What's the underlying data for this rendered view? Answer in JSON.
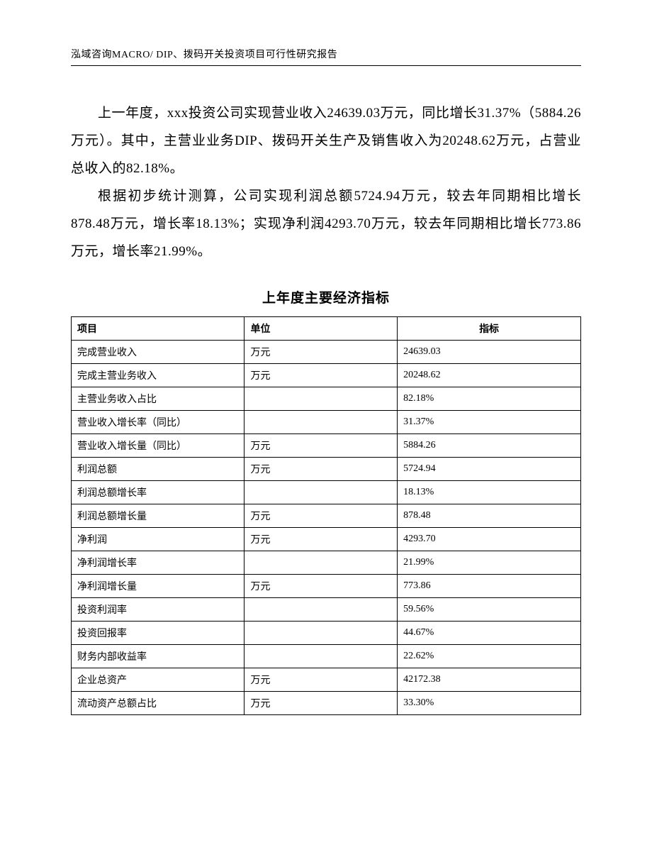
{
  "header": {
    "text": "泓域咨询MACRO/   DIP、拨码开关投资项目可行性研究报告"
  },
  "body_paragraphs": [
    "上一年度，xxx投资公司实现营业收入24639.03万元，同比增长31.37%（5884.26万元）。其中，主营业业务DIP、拨码开关生产及销售收入为20248.62万元，占营业总收入的82.18%。",
    "根据初步统计测算，公司实现利润总额5724.94万元，较去年同期相比增长878.48万元，增长率18.13%；实现净利润4293.70万元，较去年同期相比增长773.86万元，增长率21.99%。"
  ],
  "table": {
    "title": "上年度主要经济指标",
    "type": "table",
    "border_color": "#000000",
    "background_color": "#ffffff",
    "header_font_weight": "bold",
    "font_size_pt": 10.5,
    "column_widths_pct": [
      34,
      30,
      36
    ],
    "columns": [
      "项目",
      "单位",
      "指标"
    ],
    "header_align": [
      "left",
      "left",
      "center"
    ],
    "rows": [
      [
        "完成营业收入",
        "万元",
        "24639.03"
      ],
      [
        "完成主营业务收入",
        "万元",
        "20248.62"
      ],
      [
        "主营业务收入占比",
        "",
        "82.18%"
      ],
      [
        "营业收入增长率（同比）",
        "",
        "31.37%"
      ],
      [
        "营业收入增长量（同比）",
        "万元",
        "5884.26"
      ],
      [
        "利润总额",
        "万元",
        "5724.94"
      ],
      [
        "利润总额增长率",
        "",
        "18.13%"
      ],
      [
        "利润总额增长量",
        "万元",
        "878.48"
      ],
      [
        "净利润",
        "万元",
        "4293.70"
      ],
      [
        "净利润增长率",
        "",
        "21.99%"
      ],
      [
        "净利润增长量",
        "万元",
        "773.86"
      ],
      [
        "投资利润率",
        "",
        "59.56%"
      ],
      [
        "投资回报率",
        "",
        "44.67%"
      ],
      [
        "财务内部收益率",
        "",
        "22.62%"
      ],
      [
        "企业总资产",
        "万元",
        "42172.38"
      ],
      [
        "流动资产总额占比",
        "万元",
        "33.30%"
      ]
    ]
  }
}
